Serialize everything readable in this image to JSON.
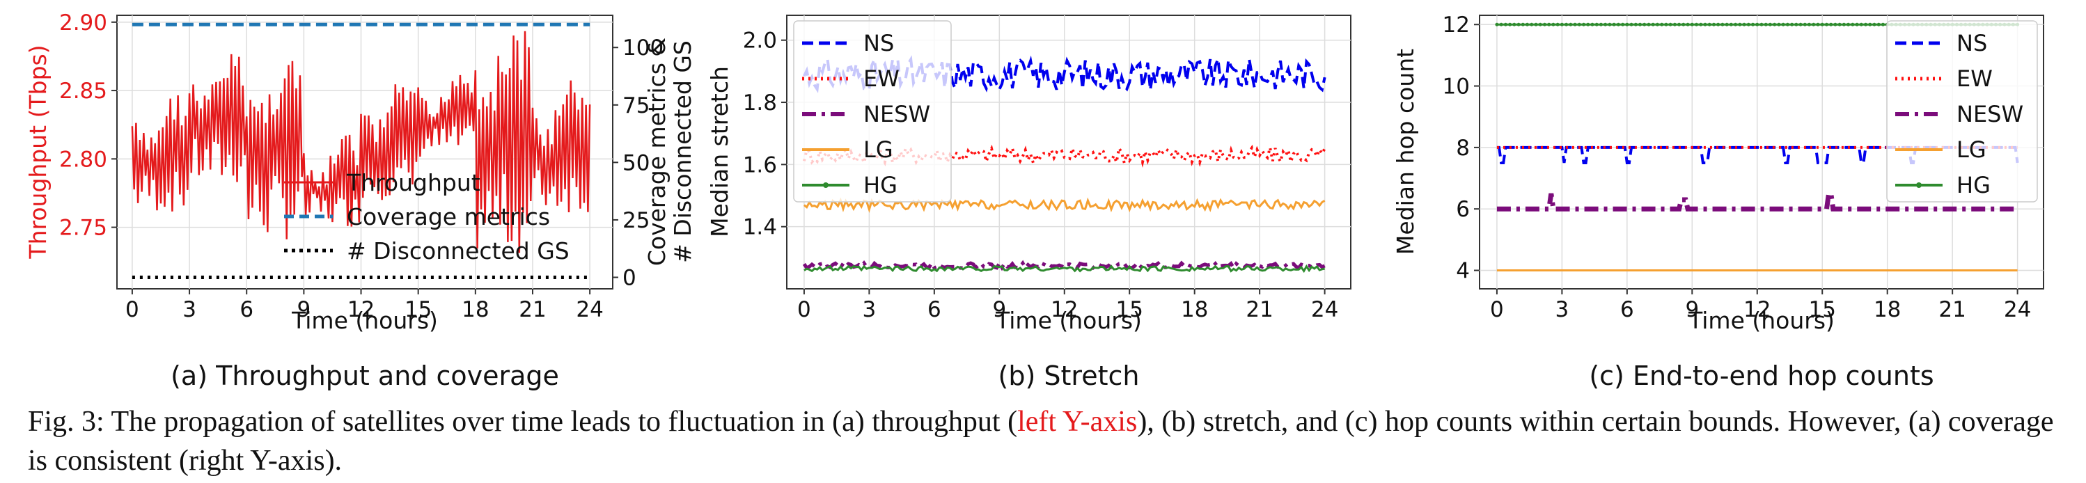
{
  "figure": {
    "caption_parts": {
      "prefix": "Fig. 3: The propagation of satellites over time leads to fluctuation in (a) throughput (",
      "highlight": "left Y-axis",
      "suffix": "), (b) stretch, and (c) hop counts within certain bounds. However, (a) coverage is consistent (right Y-axis)."
    },
    "colors": {
      "highlight": "#e41a1c"
    }
  },
  "chart_data": [
    {
      "id": "a",
      "type": "line",
      "subcaption": "(a) Throughput and coverage",
      "xlabel": "Time (hours)",
      "ylabel_left": "Throughput (Tbps)",
      "ylabel_right_line1": "Coverage metrics &",
      "ylabel_right_line2": "# Disconnected GS",
      "xticks": [
        "0",
        "3",
        "6",
        "9",
        "12",
        "15",
        "18",
        "21",
        "24"
      ],
      "xlim": [
        -0.8,
        25.2
      ],
      "ylim_left": [
        2.705,
        2.905
      ],
      "ylim_right": [
        -5,
        114
      ],
      "yticks_left": [
        "2.75",
        "2.80",
        "2.85",
        "2.90"
      ],
      "yticks_right": [
        "0",
        "25",
        "50",
        "75",
        "100"
      ],
      "legend": [
        "Throughput",
        "Coverage metrics",
        "# Disconnected GS"
      ],
      "legend_position": "center-right",
      "series": [
        {
          "name": "Throughput",
          "axis": "left",
          "color": "#e41a1c",
          "style": "solid",
          "x_range": [
            0,
            24
          ],
          "envelope_low": [
            2.76,
            2.78,
            2.74,
            2.75,
            2.77,
            2.8,
            2.73,
            2.76
          ],
          "envelope_high": [
            2.85,
            2.88,
            2.88,
            2.82,
            2.86,
            2.87,
            2.9,
            2.86
          ],
          "note": "dense oscillation roughly between 2.73 and 2.90"
        },
        {
          "name": "Coverage metrics",
          "axis": "right",
          "color": "#1f77b4",
          "style": "dashed",
          "x": [
            0,
            24
          ],
          "values": [
            110,
            110
          ]
        },
        {
          "name": "# Disconnected GS",
          "axis": "right",
          "color": "#000000",
          "style": "dotted",
          "x": [
            0,
            24
          ],
          "values": [
            0,
            0
          ]
        }
      ]
    },
    {
      "id": "b",
      "type": "line",
      "subcaption": "(b) Stretch",
      "xlabel": "Time (hours)",
      "ylabel": "Median stretch",
      "xticks": [
        "0",
        "3",
        "6",
        "9",
        "12",
        "15",
        "18",
        "21",
        "24"
      ],
      "xlim": [
        -0.8,
        25.2
      ],
      "ylim": [
        1.2,
        2.08
      ],
      "yticks": [
        "1.4",
        "1.6",
        "1.8",
        "2.0"
      ],
      "legend": [
        "NS",
        "EW",
        "NESW",
        "LG",
        "HG"
      ],
      "legend_position": "upper-left",
      "series": [
        {
          "name": "NS",
          "color": "#0000ee",
          "style": "dashed",
          "mean": 1.89,
          "amplitude": 0.05
        },
        {
          "name": "EW",
          "color": "#ff1010",
          "style": "dotted",
          "mean": 1.63,
          "amplitude": 0.025
        },
        {
          "name": "NESW",
          "color": "#7b0c7b",
          "style": "dashdot",
          "mean": 1.275,
          "amplitude": 0.008
        },
        {
          "name": "LG",
          "color": "#f5a030",
          "style": "solid",
          "mean": 1.47,
          "amplitude": 0.015
        },
        {
          "name": "HG",
          "color": "#2e8b2e",
          "style": "solid-marker",
          "mean": 1.265,
          "amplitude": 0.008
        }
      ]
    },
    {
      "id": "c",
      "type": "line",
      "subcaption": "(c) End-to-end hop counts",
      "xlabel": "Time (hours)",
      "ylabel": "Median hop count",
      "xticks": [
        "0",
        "3",
        "6",
        "9",
        "12",
        "15",
        "18",
        "21",
        "24"
      ],
      "xlim": [
        -0.8,
        25.2
      ],
      "ylim": [
        3.4,
        12.3
      ],
      "yticks": [
        "4",
        "6",
        "8",
        "10",
        "12"
      ],
      "legend": [
        "NS",
        "EW",
        "NESW",
        "LG",
        "HG"
      ],
      "legend_position": "center-right",
      "series": [
        {
          "name": "NS",
          "color": "#0000ee",
          "style": "dashed",
          "base": 8,
          "dips": [
            {
              "x": 0.3,
              "to": 7.5
            },
            {
              "x": 3.1,
              "to": 7.5
            },
            {
              "x": 4.0,
              "to": 7.5
            },
            {
              "x": 6.1,
              "to": 7.5
            },
            {
              "x": 9.6,
              "to": 7.5
            },
            {
              "x": 13.3,
              "to": 7.5
            },
            {
              "x": 14.9,
              "to": 7.5
            },
            {
              "x": 15.2,
              "to": 7.5
            },
            {
              "x": 16.9,
              "to": 7.5
            },
            {
              "x": 19.2,
              "to": 7.5
            },
            {
              "x": 24.0,
              "to": 7.5
            }
          ]
        },
        {
          "name": "EW",
          "color": "#ff1010",
          "style": "dotted",
          "base": 8,
          "dips": []
        },
        {
          "name": "NESW",
          "color": "#7b0c7b",
          "style": "dashdot",
          "base": 6,
          "bumps": [
            {
              "x": 2.5,
              "to": 6.5
            },
            {
              "x": 8.6,
              "to": 6.3
            },
            {
              "x": 15.3,
              "to": 6.5
            }
          ]
        },
        {
          "name": "LG",
          "color": "#f5a030",
          "style": "solid",
          "base": 4
        },
        {
          "name": "HG",
          "color": "#2e8b2e",
          "style": "solid-marker",
          "base": 12
        }
      ]
    }
  ]
}
